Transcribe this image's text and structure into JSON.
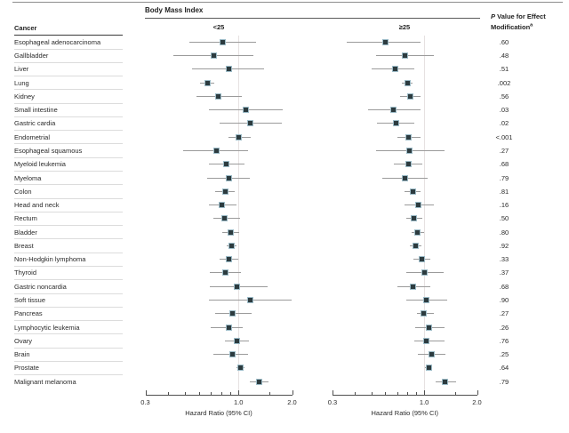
{
  "figure": {
    "group_header": "Body Mass Index",
    "cancer_header": "Cancer",
    "pvalue_header": {
      "p_italic": "P",
      "line1_rest": " Value for Effect",
      "line2": "Modification",
      "superscript": "a"
    },
    "panels": [
      {
        "label": "<25"
      },
      {
        "label": "≥25"
      }
    ],
    "axis": {
      "label": "Hazard Ratio (95% CI)",
      "scale": "log",
      "min": 0.3,
      "max": 2.0,
      "major_ticks": [
        0.3,
        1.0,
        2.0
      ],
      "major_tick_labels": [
        "0.3",
        "1.0",
        "2.0"
      ],
      "minor_ticks": [
        0.4,
        0.5,
        0.6,
        0.7,
        0.8,
        0.9,
        1.5
      ],
      "reference_line": 1.0
    }
  },
  "colors": {
    "marker_fill": "#2c3b3f",
    "marker_edge": "#9dbcc8",
    "ci_line": "#9b9b9b",
    "reference_line": "#e6e1e1",
    "axis_line": "#4f4f4f",
    "row_separator": "#dcdcdc"
  },
  "chart_data": {
    "type": "forest",
    "title": "Body Mass Index",
    "xlabel": "Hazard Ratio (95% CI)",
    "x_range": [
      0.3,
      2.0
    ],
    "series_names": [
      "BMI <25",
      "BMI ≥25"
    ],
    "rows": [
      {
        "cancer": "Esophageal adenocarcinoma",
        "under25": {
          "hr": 0.82,
          "lo": 0.53,
          "hi": 1.25
        },
        "over25": {
          "hr": 0.6,
          "lo": 0.36,
          "hi": 0.95
        },
        "p_value": ".60"
      },
      {
        "cancer": "Gallbladder",
        "under25": {
          "hr": 0.73,
          "lo": 0.43,
          "hi": 1.21
        },
        "over25": {
          "hr": 0.78,
          "lo": 0.53,
          "hi": 1.14
        },
        "p_value": ".48"
      },
      {
        "cancer": "Liver",
        "under25": {
          "hr": 0.88,
          "lo": 0.55,
          "hi": 1.39
        },
        "over25": {
          "hr": 0.68,
          "lo": 0.5,
          "hi": 0.88
        },
        "p_value": ".51"
      },
      {
        "cancer": "Lung",
        "under25": {
          "hr": 0.67,
          "lo": 0.61,
          "hi": 0.73
        },
        "over25": {
          "hr": 0.8,
          "lo": 0.75,
          "hi": 0.86
        },
        "p_value": ".002"
      },
      {
        "cancer": "Kidney",
        "under25": {
          "hr": 0.77,
          "lo": 0.58,
          "hi": 1.04
        },
        "over25": {
          "hr": 0.83,
          "lo": 0.73,
          "hi": 0.95
        },
        "p_value": ".56"
      },
      {
        "cancer": "Small intestine",
        "under25": {
          "hr": 1.1,
          "lo": 0.68,
          "hi": 1.78
        },
        "over25": {
          "hr": 0.67,
          "lo": 0.48,
          "hi": 0.95
        },
        "p_value": ".03"
      },
      {
        "cancer": "Gastric cardia",
        "under25": {
          "hr": 1.17,
          "lo": 0.78,
          "hi": 1.75
        },
        "over25": {
          "hr": 0.69,
          "lo": 0.54,
          "hi": 0.88
        },
        "p_value": ".02"
      },
      {
        "cancer": "Endometrial",
        "under25": {
          "hr": 1.0,
          "lo": 0.88,
          "hi": 1.17
        },
        "over25": {
          "hr": 0.81,
          "lo": 0.7,
          "hi": 0.95
        },
        "p_value": "<.001"
      },
      {
        "cancer": "Esophageal squamous",
        "under25": {
          "hr": 0.75,
          "lo": 0.49,
          "hi": 1.13
        },
        "over25": {
          "hr": 0.82,
          "lo": 0.53,
          "hi": 1.3
        },
        "p_value": ".27"
      },
      {
        "cancer": "Myeloid leukemia",
        "under25": {
          "hr": 0.85,
          "lo": 0.68,
          "hi": 1.08
        },
        "over25": {
          "hr": 0.81,
          "lo": 0.67,
          "hi": 0.97
        },
        "p_value": ".68"
      },
      {
        "cancer": "Myeloma",
        "under25": {
          "hr": 0.88,
          "lo": 0.67,
          "hi": 1.16
        },
        "over25": {
          "hr": 0.78,
          "lo": 0.58,
          "hi": 1.05
        },
        "p_value": ".79"
      },
      {
        "cancer": "Colon",
        "under25": {
          "hr": 0.84,
          "lo": 0.74,
          "hi": 0.95
        },
        "over25": {
          "hr": 0.86,
          "lo": 0.77,
          "hi": 0.95
        },
        "p_value": ".81"
      },
      {
        "cancer": "Head and neck",
        "under25": {
          "hr": 0.81,
          "lo": 0.68,
          "hi": 0.98
        },
        "over25": {
          "hr": 0.93,
          "lo": 0.77,
          "hi": 1.14
        },
        "p_value": ".16"
      },
      {
        "cancer": "Rectum",
        "under25": {
          "hr": 0.83,
          "lo": 0.72,
          "hi": 1.02
        },
        "over25": {
          "hr": 0.87,
          "lo": 0.79,
          "hi": 0.97
        },
        "p_value": ".50"
      },
      {
        "cancer": "Bladder",
        "under25": {
          "hr": 0.9,
          "lo": 0.81,
          "hi": 1.01
        },
        "over25": {
          "hr": 0.92,
          "lo": 0.85,
          "hi": 1.0
        },
        "p_value": ".80"
      },
      {
        "cancer": "Breast",
        "under25": {
          "hr": 0.91,
          "lo": 0.86,
          "hi": 0.97
        },
        "over25": {
          "hr": 0.89,
          "lo": 0.83,
          "hi": 0.96
        },
        "p_value": ".92"
      },
      {
        "cancer": "Non-Hodgkin lymphoma",
        "under25": {
          "hr": 0.88,
          "lo": 0.78,
          "hi": 1.0
        },
        "over25": {
          "hr": 0.97,
          "lo": 0.87,
          "hi": 1.08
        },
        "p_value": ".33"
      },
      {
        "cancer": "Thyroid",
        "under25": {
          "hr": 0.84,
          "lo": 0.69,
          "hi": 1.03
        },
        "over25": {
          "hr": 1.0,
          "lo": 0.79,
          "hi": 1.29
        },
        "p_value": ".37"
      },
      {
        "cancer": "Gastric noncardia",
        "under25": {
          "hr": 0.98,
          "lo": 0.69,
          "hi": 1.45
        },
        "over25": {
          "hr": 0.86,
          "lo": 0.7,
          "hi": 1.09
        },
        "p_value": ".68"
      },
      {
        "cancer": "Soft tissue",
        "under25": {
          "hr": 1.16,
          "lo": 0.68,
          "hi": 2.0
        },
        "over25": {
          "hr": 1.03,
          "lo": 0.79,
          "hi": 1.35
        },
        "p_value": ".90"
      },
      {
        "cancer": "Pancreas",
        "under25": {
          "hr": 0.93,
          "lo": 0.74,
          "hi": 1.19
        },
        "over25": {
          "hr": 0.99,
          "lo": 0.91,
          "hi": 1.14
        },
        "p_value": ".27"
      },
      {
        "cancer": "Lymphocytic leukemia",
        "under25": {
          "hr": 0.88,
          "lo": 0.7,
          "hi": 1.06
        },
        "over25": {
          "hr": 1.07,
          "lo": 0.89,
          "hi": 1.31
        },
        "p_value": ".26"
      },
      {
        "cancer": "Ovary",
        "under25": {
          "hr": 0.98,
          "lo": 0.84,
          "hi": 1.14
        },
        "over25": {
          "hr": 1.03,
          "lo": 0.88,
          "hi": 1.3
        },
        "p_value": ".76"
      },
      {
        "cancer": "Brain",
        "under25": {
          "hr": 0.93,
          "lo": 0.72,
          "hi": 1.13
        },
        "over25": {
          "hr": 1.1,
          "lo": 0.92,
          "hi": 1.32
        },
        "p_value": ".25"
      },
      {
        "cancer": "Prostate",
        "under25": {
          "hr": 1.03,
          "lo": 0.98,
          "hi": 1.08
        },
        "over25": {
          "hr": 1.06,
          "lo": 1.01,
          "hi": 1.11
        },
        "p_value": ".64"
      },
      {
        "cancer": "Malignant melanoma",
        "under25": {
          "hr": 1.3,
          "lo": 1.16,
          "hi": 1.47
        },
        "over25": {
          "hr": 1.31,
          "lo": 1.16,
          "hi": 1.52
        },
        "p_value": ".79"
      }
    ]
  }
}
